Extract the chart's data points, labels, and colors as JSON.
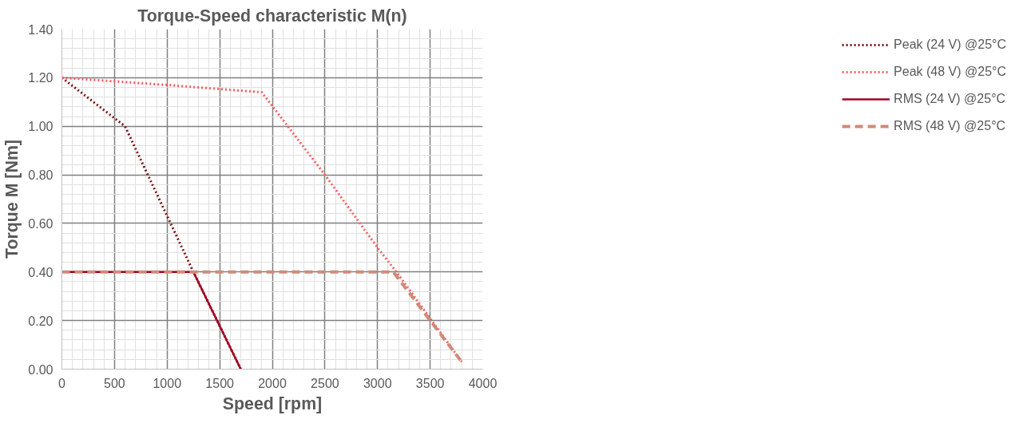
{
  "chart_data": {
    "type": "line",
    "title": "Torque-Speed characteristic M(n)",
    "xlabel": "Speed [rpm]",
    "ylabel": "Torque M [Nm]",
    "xlim": [
      0,
      4000
    ],
    "xticks": [
      0,
      500,
      1000,
      1500,
      2000,
      2500,
      3000,
      3500,
      4000
    ],
    "ylim": [
      0,
      1.4
    ],
    "yticks": [
      {
        "value": 0,
        "label": "0.00"
      },
      {
        "value": 0.2,
        "label": "0.20"
      },
      {
        "value": 0.4,
        "label": "0.40"
      },
      {
        "value": 0.6,
        "label": "0.60"
      },
      {
        "value": 0.8,
        "label": "0.80"
      },
      {
        "value": 1.0,
        "label": "1.00"
      },
      {
        "value": 1.2,
        "label": "1.20"
      },
      {
        "value": 1.4,
        "label": "1.40"
      }
    ],
    "grid": true,
    "legend": "right",
    "marker": "none",
    "series": [
      {
        "name": "Peak (24 V) @25°C",
        "color": "#7b1414",
        "line_style": "dotted",
        "x": [
          0,
          600,
          1250,
          1700
        ],
        "values": [
          1.2,
          1.0,
          0.4,
          0.0
        ]
      },
      {
        "name": "Peak (48 V) @25°C",
        "color": "#ff5b5b",
        "line_style": "dotted",
        "x": [
          0,
          1000,
          1900,
          2500,
          3000,
          3180,
          3800
        ],
        "values": [
          1.2,
          1.17,
          1.14,
          0.8,
          0.5,
          0.4,
          0.03
        ]
      },
      {
        "name": "RMS (24 V) @25°C",
        "color": "#a50021",
        "line_style": "solid",
        "x": [
          0,
          1250,
          1700
        ],
        "values": [
          0.4,
          0.4,
          0.0
        ]
      },
      {
        "name": "RMS (48 V) @25°C",
        "color": "#d08a78",
        "line_style": "dashed",
        "x": [
          0,
          3150,
          3800
        ],
        "values": [
          0.4,
          0.4,
          0.03
        ]
      }
    ]
  }
}
